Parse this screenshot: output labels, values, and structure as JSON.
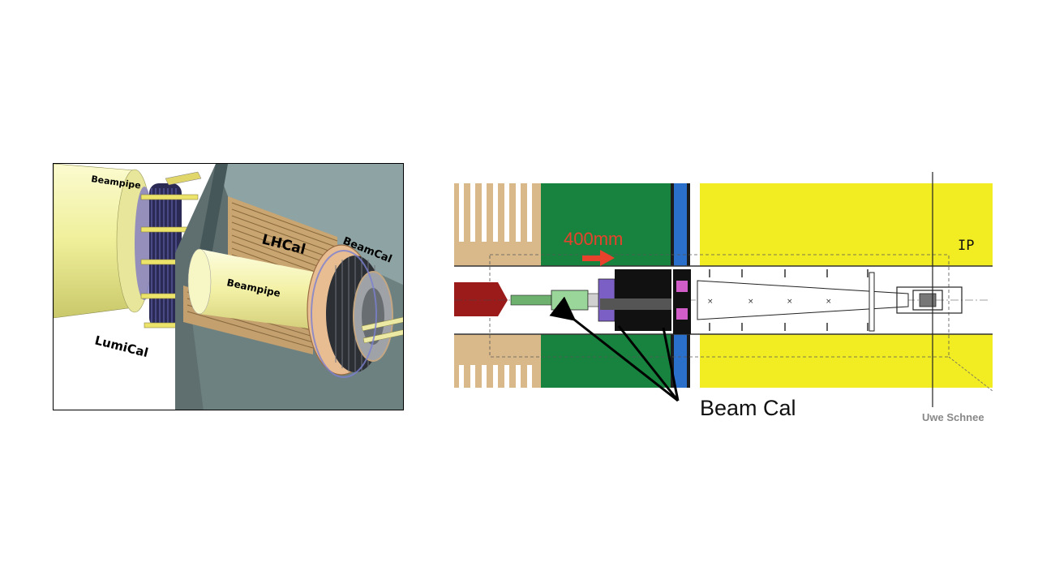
{
  "left_diagram": {
    "labels": {
      "beampipe_outer": "Beampipe",
      "beampipe_inner": "Beampipe",
      "lhcal": "LHCal",
      "beamcal": "BeamCal",
      "lumical": "LumiCal"
    }
  },
  "right_diagram": {
    "labels": {
      "shift": "400mm",
      "ip": "IP",
      "beamcal": "Beam Cal",
      "credit": "Uwe Schnee"
    },
    "colors": {
      "shift_arrow": "#e8412c",
      "yoke_yellow": "#f2ec22",
      "green_region": "#17833f",
      "blue_strip": "#2a6fc9",
      "tan_region": "#d9b98a",
      "red_beampipe": "#9b1b1b"
    }
  }
}
